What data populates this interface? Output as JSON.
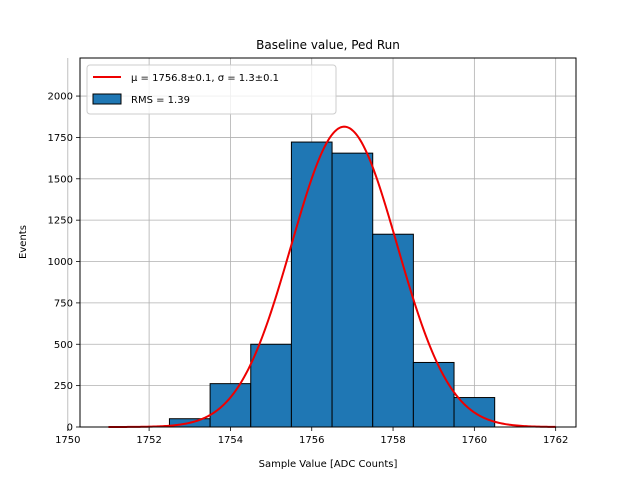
{
  "chart_data": {
    "type": "bar",
    "title": "Baseline value, Ped Run",
    "xlabel": "Sample Value [ADC Counts]",
    "ylabel": "Events",
    "xlim": [
      1750.3,
      1762.5
    ],
    "ylim": [
      0,
      2230
    ],
    "xticks": [
      1750,
      1752,
      1754,
      1756,
      1758,
      1760,
      1762
    ],
    "yticks": [
      0,
      250,
      500,
      750,
      1000,
      1250,
      1500,
      1750,
      2000
    ],
    "grid": true,
    "legend_position": "top-left",
    "bins": [
      {
        "x0": 1752.5,
        "x1": 1753.5,
        "count": 50
      },
      {
        "x0": 1753.5,
        "x1": 1754.5,
        "count": 262
      },
      {
        "x0": 1754.5,
        "x1": 1755.5,
        "count": 500
      },
      {
        "x0": 1755.5,
        "x1": 1756.5,
        "count": 1722
      },
      {
        "x0": 1756.5,
        "x1": 1757.5,
        "count": 1655
      },
      {
        "x0": 1757.5,
        "x1": 1758.5,
        "count": 1165
      },
      {
        "x0": 1758.5,
        "x1": 1759.5,
        "count": 390
      },
      {
        "x0": 1759.5,
        "x1": 1760.5,
        "count": 178
      }
    ],
    "fit": {
      "mu": 1756.8,
      "sigma": 1.3,
      "amplitude": 1815,
      "x_range": [
        1751,
        1762
      ]
    },
    "series": [
      {
        "name": "$\\mu=1756.8\\pm0.1, \\sigma=1.3\\pm0.1$",
        "label_display": "μ = 1756.8±0.1, σ = 1.3±0.1",
        "kind": "fit-line",
        "color": "#ee0000"
      },
      {
        "name": "RMS = 1.39",
        "label_display": "RMS = 1.39",
        "kind": "histogram",
        "color": "#1f77b4"
      }
    ]
  }
}
